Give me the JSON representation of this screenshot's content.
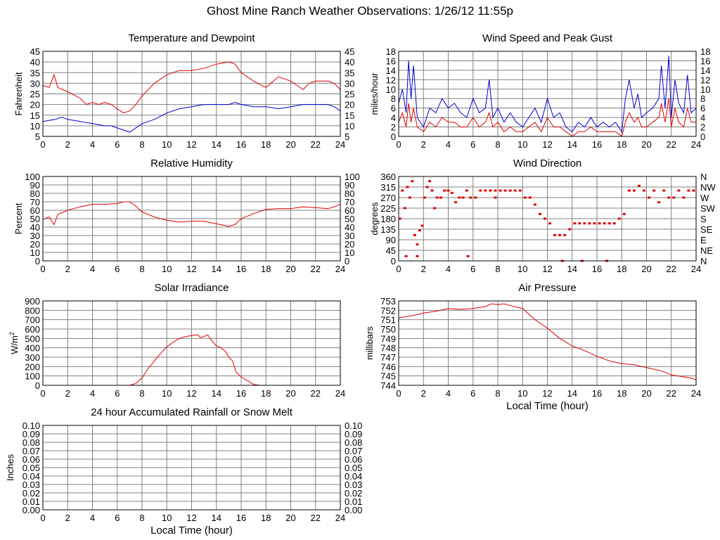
{
  "page": {
    "title": "Ghost Mine Ranch Weather Observations: 1/26/12 11:55p"
  },
  "colors": {
    "red": "#e00000",
    "blue": "#0000d0",
    "grid": "#808080",
    "axis": "#000000"
  },
  "chart_data": [
    {
      "id": "temp",
      "type": "line",
      "title": "Temperature and Dewpoint",
      "ylabel": "Fahrenheit",
      "xlabel": "",
      "xlim": [
        0,
        24
      ],
      "ylim": [
        5,
        45
      ],
      "x_ticks": [
        0,
        2,
        4,
        6,
        8,
        10,
        12,
        14,
        16,
        18,
        20,
        22,
        24
      ],
      "y_ticks": [
        5,
        10,
        15,
        20,
        25,
        30,
        35,
        40,
        45
      ],
      "right_axis": true,
      "grid": true,
      "series": [
        {
          "color_key": "red",
          "mode": "line",
          "x": [
            0,
            0.5,
            0.9,
            1.2,
            2,
            3,
            3.5,
            4,
            4.5,
            5,
            5.5,
            6,
            6.5,
            7,
            7.5,
            8,
            9,
            10,
            11,
            12,
            13,
            14,
            15,
            15.5,
            16,
            17,
            18,
            19,
            20,
            20.5,
            21,
            21.5,
            22,
            23,
            23.5,
            24
          ],
          "y": [
            29,
            28,
            34,
            28,
            26,
            23,
            20,
            21,
            20,
            21,
            20,
            18,
            16,
            17,
            20,
            24,
            30,
            34,
            36,
            36,
            37,
            39,
            40,
            39,
            35,
            31,
            28,
            33,
            31,
            29,
            27,
            30,
            31,
            31,
            30,
            27
          ]
        },
        {
          "color_key": "blue",
          "mode": "line",
          "x": [
            0,
            1,
            1.5,
            2,
            3,
            4,
            5,
            5.5,
            6,
            6.5,
            7,
            7.5,
            8,
            9,
            10,
            11,
            12,
            13,
            14,
            15,
            15.5,
            16,
            17,
            18,
            19,
            20,
            21,
            22,
            23,
            23.5,
            24
          ],
          "y": [
            12,
            13,
            14,
            13,
            12,
            11,
            10,
            10,
            9,
            8,
            7,
            9,
            11,
            13,
            16,
            18,
            19,
            20,
            20,
            20,
            21,
            20,
            19,
            19,
            18,
            19,
            20,
            20,
            20,
            19,
            17
          ]
        }
      ]
    },
    {
      "id": "wind",
      "type": "line",
      "title": "Wind Speed and Peak Gust",
      "ylabel": "miles/hour",
      "xlabel": "",
      "xlim": [
        0,
        24
      ],
      "ylim": [
        0,
        18
      ],
      "x_ticks": [
        0,
        2,
        4,
        6,
        8,
        10,
        12,
        14,
        16,
        18,
        20,
        22,
        24
      ],
      "y_ticks": [
        0,
        2,
        4,
        6,
        8,
        10,
        12,
        14,
        16,
        18
      ],
      "right_axis": true,
      "grid": true,
      "series": [
        {
          "color_key": "blue",
          "mode": "line",
          "x": [
            0,
            0.3,
            0.6,
            0.8,
            1.0,
            1.2,
            1.5,
            2,
            2.5,
            3,
            3.5,
            4,
            4.5,
            5,
            5.5,
            6,
            6.5,
            7,
            7.3,
            7.6,
            8,
            8.5,
            9,
            9.5,
            10,
            10.5,
            11,
            11.5,
            12,
            12.5,
            13,
            13.5,
            14,
            14.5,
            15,
            15.5,
            16,
            16.5,
            17,
            17.5,
            18,
            18.3,
            18.6,
            19,
            19.3,
            19.6,
            20,
            20.5,
            21,
            21.2,
            21.5,
            21.8,
            22,
            22.3,
            22.6,
            23,
            23.3,
            23.6,
            24
          ],
          "y": [
            7,
            10,
            5,
            16,
            8,
            15,
            4,
            2,
            6,
            5,
            8,
            6,
            7,
            5,
            4,
            8,
            5,
            6,
            12,
            4,
            6,
            3,
            5,
            3,
            2,
            4,
            6,
            3,
            8,
            4,
            5,
            2,
            1,
            3,
            2,
            4,
            2,
            3,
            2,
            3,
            1,
            8,
            12,
            6,
            9,
            4,
            5,
            6,
            8,
            15,
            6,
            17,
            4,
            12,
            7,
            5,
            13,
            5,
            6
          ]
        },
        {
          "color_key": "red",
          "mode": "line",
          "x": [
            0,
            0.3,
            0.6,
            0.8,
            1.0,
            1.2,
            1.5,
            2,
            2.5,
            3,
            3.5,
            4,
            4.5,
            5,
            5.5,
            6,
            6.5,
            7,
            7.3,
            7.6,
            8,
            8.5,
            9,
            9.5,
            10,
            10.5,
            11,
            11.5,
            12,
            12.5,
            13,
            13.5,
            14,
            14.5,
            15,
            15.5,
            16,
            16.5,
            17,
            17.5,
            18,
            18.3,
            18.6,
            19,
            19.3,
            19.6,
            20,
            20.5,
            21,
            21.2,
            21.5,
            21.8,
            22,
            22.3,
            22.6,
            23,
            23.3,
            23.6,
            24
          ],
          "y": [
            3,
            5,
            2,
            7,
            3,
            6,
            2,
            1,
            3,
            2,
            4,
            3,
            3,
            2,
            2,
            4,
            2,
            3,
            5,
            2,
            3,
            1,
            2,
            1,
            1,
            2,
            3,
            1,
            4,
            2,
            2,
            1,
            0,
            1,
            1,
            2,
            1,
            1,
            1,
            1,
            0,
            3,
            5,
            3,
            4,
            2,
            2,
            3,
            4,
            7,
            3,
            8,
            2,
            6,
            3,
            2,
            6,
            3,
            3
          ]
        }
      ]
    },
    {
      "id": "humidity",
      "type": "line",
      "title": "Relative Humidity",
      "ylabel": "Percent",
      "xlabel": "",
      "xlim": [
        0,
        24
      ],
      "ylim": [
        0,
        100
      ],
      "x_ticks": [
        0,
        2,
        4,
        6,
        8,
        10,
        12,
        14,
        16,
        18,
        20,
        22,
        24
      ],
      "y_ticks": [
        0,
        10,
        20,
        30,
        40,
        50,
        60,
        70,
        80,
        90,
        100
      ],
      "right_axis": true,
      "grid": true,
      "series": [
        {
          "color_key": "red",
          "mode": "line",
          "x": [
            0,
            0.5,
            0.9,
            1.2,
            2,
            3,
            4,
            5,
            6,
            6.5,
            7,
            7.5,
            8,
            9,
            10,
            11,
            12,
            13,
            14,
            15,
            15.5,
            16,
            17,
            18,
            19,
            20,
            21,
            22,
            23,
            23.5,
            24
          ],
          "y": [
            49,
            52,
            43,
            55,
            60,
            64,
            67,
            67,
            68,
            70,
            70,
            65,
            58,
            52,
            48,
            46,
            47,
            47,
            44,
            41,
            43,
            50,
            56,
            61,
            62,
            62,
            64,
            63,
            62,
            64,
            67
          ]
        }
      ]
    },
    {
      "id": "direction",
      "type": "scatter",
      "title": "Wind Direction",
      "ylabel": "degrees",
      "xlabel": "",
      "xlim": [
        0,
        24
      ],
      "ylim": [
        0,
        360
      ],
      "x_ticks": [
        0,
        2,
        4,
        6,
        8,
        10,
        12,
        14,
        16,
        18,
        20,
        22,
        24
      ],
      "y_ticks": [
        0,
        45,
        90,
        135,
        180,
        225,
        270,
        315,
        360
      ],
      "right_tick_labels": [
        "N",
        "NE",
        "E",
        "SE",
        "S",
        "SW",
        "W",
        "NW",
        "N"
      ],
      "grid": true,
      "series": [
        {
          "color_key": "red",
          "mode": "points",
          "x": [
            0.1,
            0.3,
            0.5,
            0.7,
            0.9,
            1.1,
            1.3,
            1.5,
            1.7,
            1.9,
            2.1,
            2.3,
            2.5,
            2.7,
            2.9,
            3.1,
            3.4,
            3.7,
            4.0,
            4.3,
            4.6,
            4.9,
            5.2,
            5.5,
            5.8,
            6.2,
            6.6,
            7.0,
            7.4,
            7.8,
            8.2,
            8.6,
            9.0,
            9.4,
            9.8,
            10.2,
            10.6,
            11.0,
            11.4,
            11.8,
            12.2,
            12.6,
            13.0,
            13.4,
            13.8,
            14.2,
            14.6,
            15.0,
            15.4,
            15.8,
            16.2,
            16.6,
            17.0,
            17.4,
            17.8,
            18.2,
            18.6,
            19.0,
            19.4,
            19.8,
            20.2,
            20.6,
            21.0,
            21.4,
            21.8,
            22.2,
            22.6,
            23.0,
            23.4,
            23.8,
            0.6,
            1.5,
            13.2,
            14.8,
            16.8,
            5.6,
            7.8
          ],
          "y": [
            180,
            300,
            225,
            315,
            270,
            340,
            110,
            70,
            130,
            150,
            270,
            315,
            340,
            300,
            225,
            270,
            270,
            300,
            300,
            290,
            250,
            270,
            270,
            300,
            270,
            270,
            300,
            300,
            300,
            300,
            300,
            300,
            300,
            300,
            300,
            270,
            270,
            240,
            200,
            180,
            160,
            110,
            110,
            110,
            135,
            160,
            160,
            160,
            160,
            160,
            160,
            160,
            160,
            160,
            180,
            200,
            300,
            300,
            320,
            300,
            270,
            300,
            250,
            300,
            270,
            270,
            300,
            270,
            300,
            300,
            20,
            20,
            0,
            0,
            0,
            20,
            270
          ]
        }
      ]
    },
    {
      "id": "solar",
      "type": "line",
      "title": "Solar Irradiance",
      "ylabel": "W/m",
      "ylabel_sup": "2",
      "xlabel": "",
      "xlim": [
        0,
        24
      ],
      "ylim": [
        0,
        900
      ],
      "x_ticks": [
        0,
        2,
        4,
        6,
        8,
        10,
        12,
        14,
        16,
        18,
        20,
        22,
        24
      ],
      "y_ticks": [
        0,
        100,
        200,
        300,
        400,
        500,
        600,
        700,
        800,
        900
      ],
      "grid": true,
      "series": [
        {
          "color_key": "red",
          "mode": "line",
          "x": [
            0,
            7,
            7.5,
            8,
            8.5,
            9,
            9.5,
            10,
            10.5,
            11,
            11.5,
            12,
            12.5,
            12.7,
            13,
            13.3,
            13.6,
            14,
            14.4,
            14.8,
            15,
            15.3,
            15.6,
            16,
            16.5,
            17,
            17.5,
            24
          ],
          "y": [
            0,
            0,
            20,
            80,
            180,
            260,
            340,
            410,
            460,
            500,
            520,
            530,
            540,
            510,
            520,
            540,
            480,
            420,
            400,
            350,
            300,
            260,
            140,
            90,
            50,
            10,
            0,
            0
          ]
        }
      ]
    },
    {
      "id": "pressure",
      "type": "line",
      "title": "Air Pressure",
      "ylabel": "millibars",
      "xlabel": "Local Time (hour)",
      "xlim": [
        0,
        24
      ],
      "ylim": [
        744,
        753
      ],
      "x_ticks": [
        0,
        2,
        4,
        6,
        8,
        10,
        12,
        14,
        16,
        18,
        20,
        22,
        24
      ],
      "y_ticks": [
        744,
        745,
        746,
        747,
        748,
        749,
        750,
        751,
        752,
        753
      ],
      "grid": true,
      "series": [
        {
          "color_key": "red",
          "mode": "line",
          "x": [
            0,
            1,
            2,
            3,
            4,
            5,
            6,
            7,
            7.5,
            8,
            8.5,
            9,
            10,
            10.5,
            11,
            12,
            13,
            14,
            15,
            16,
            17,
            18,
            19,
            20,
            21,
            21.5,
            22,
            23,
            23.5,
            24
          ],
          "y": [
            751.2,
            751.4,
            751.7,
            751.9,
            752.2,
            752.1,
            752.2,
            752.4,
            752.7,
            752.6,
            752.7,
            752.5,
            752.2,
            751.6,
            751.0,
            750.1,
            749.0,
            748.2,
            747.7,
            747.1,
            746.6,
            746.3,
            746.2,
            745.9,
            745.6,
            745.4,
            745.1,
            744.9,
            744.8,
            744.6
          ]
        }
      ]
    },
    {
      "id": "rain",
      "type": "line",
      "title": "24 hour Accumulated Rainfall or Snow Melt",
      "ylabel": "Inches",
      "xlabel": "Local Time (hour)",
      "xlim": [
        0,
        24
      ],
      "ylim": [
        0,
        0.1
      ],
      "x_ticks": [
        0,
        2,
        4,
        6,
        8,
        10,
        12,
        14,
        16,
        18,
        20,
        22,
        24
      ],
      "y_ticks": [
        0,
        0.01,
        0.02,
        0.03,
        0.04,
        0.05,
        0.06,
        0.07,
        0.08,
        0.09,
        0.1
      ],
      "y_tick_labels": [
        "0.00",
        "0.01",
        "0.02",
        "0.03",
        "0.04",
        "0.05",
        "0.06",
        "0.07",
        "0.08",
        "0.09",
        "0.10"
      ],
      "right_axis": true,
      "grid": true,
      "series": [
        {
          "color_key": "red",
          "mode": "line",
          "x": [
            0,
            24
          ],
          "y": [
            0,
            0
          ]
        }
      ]
    }
  ]
}
